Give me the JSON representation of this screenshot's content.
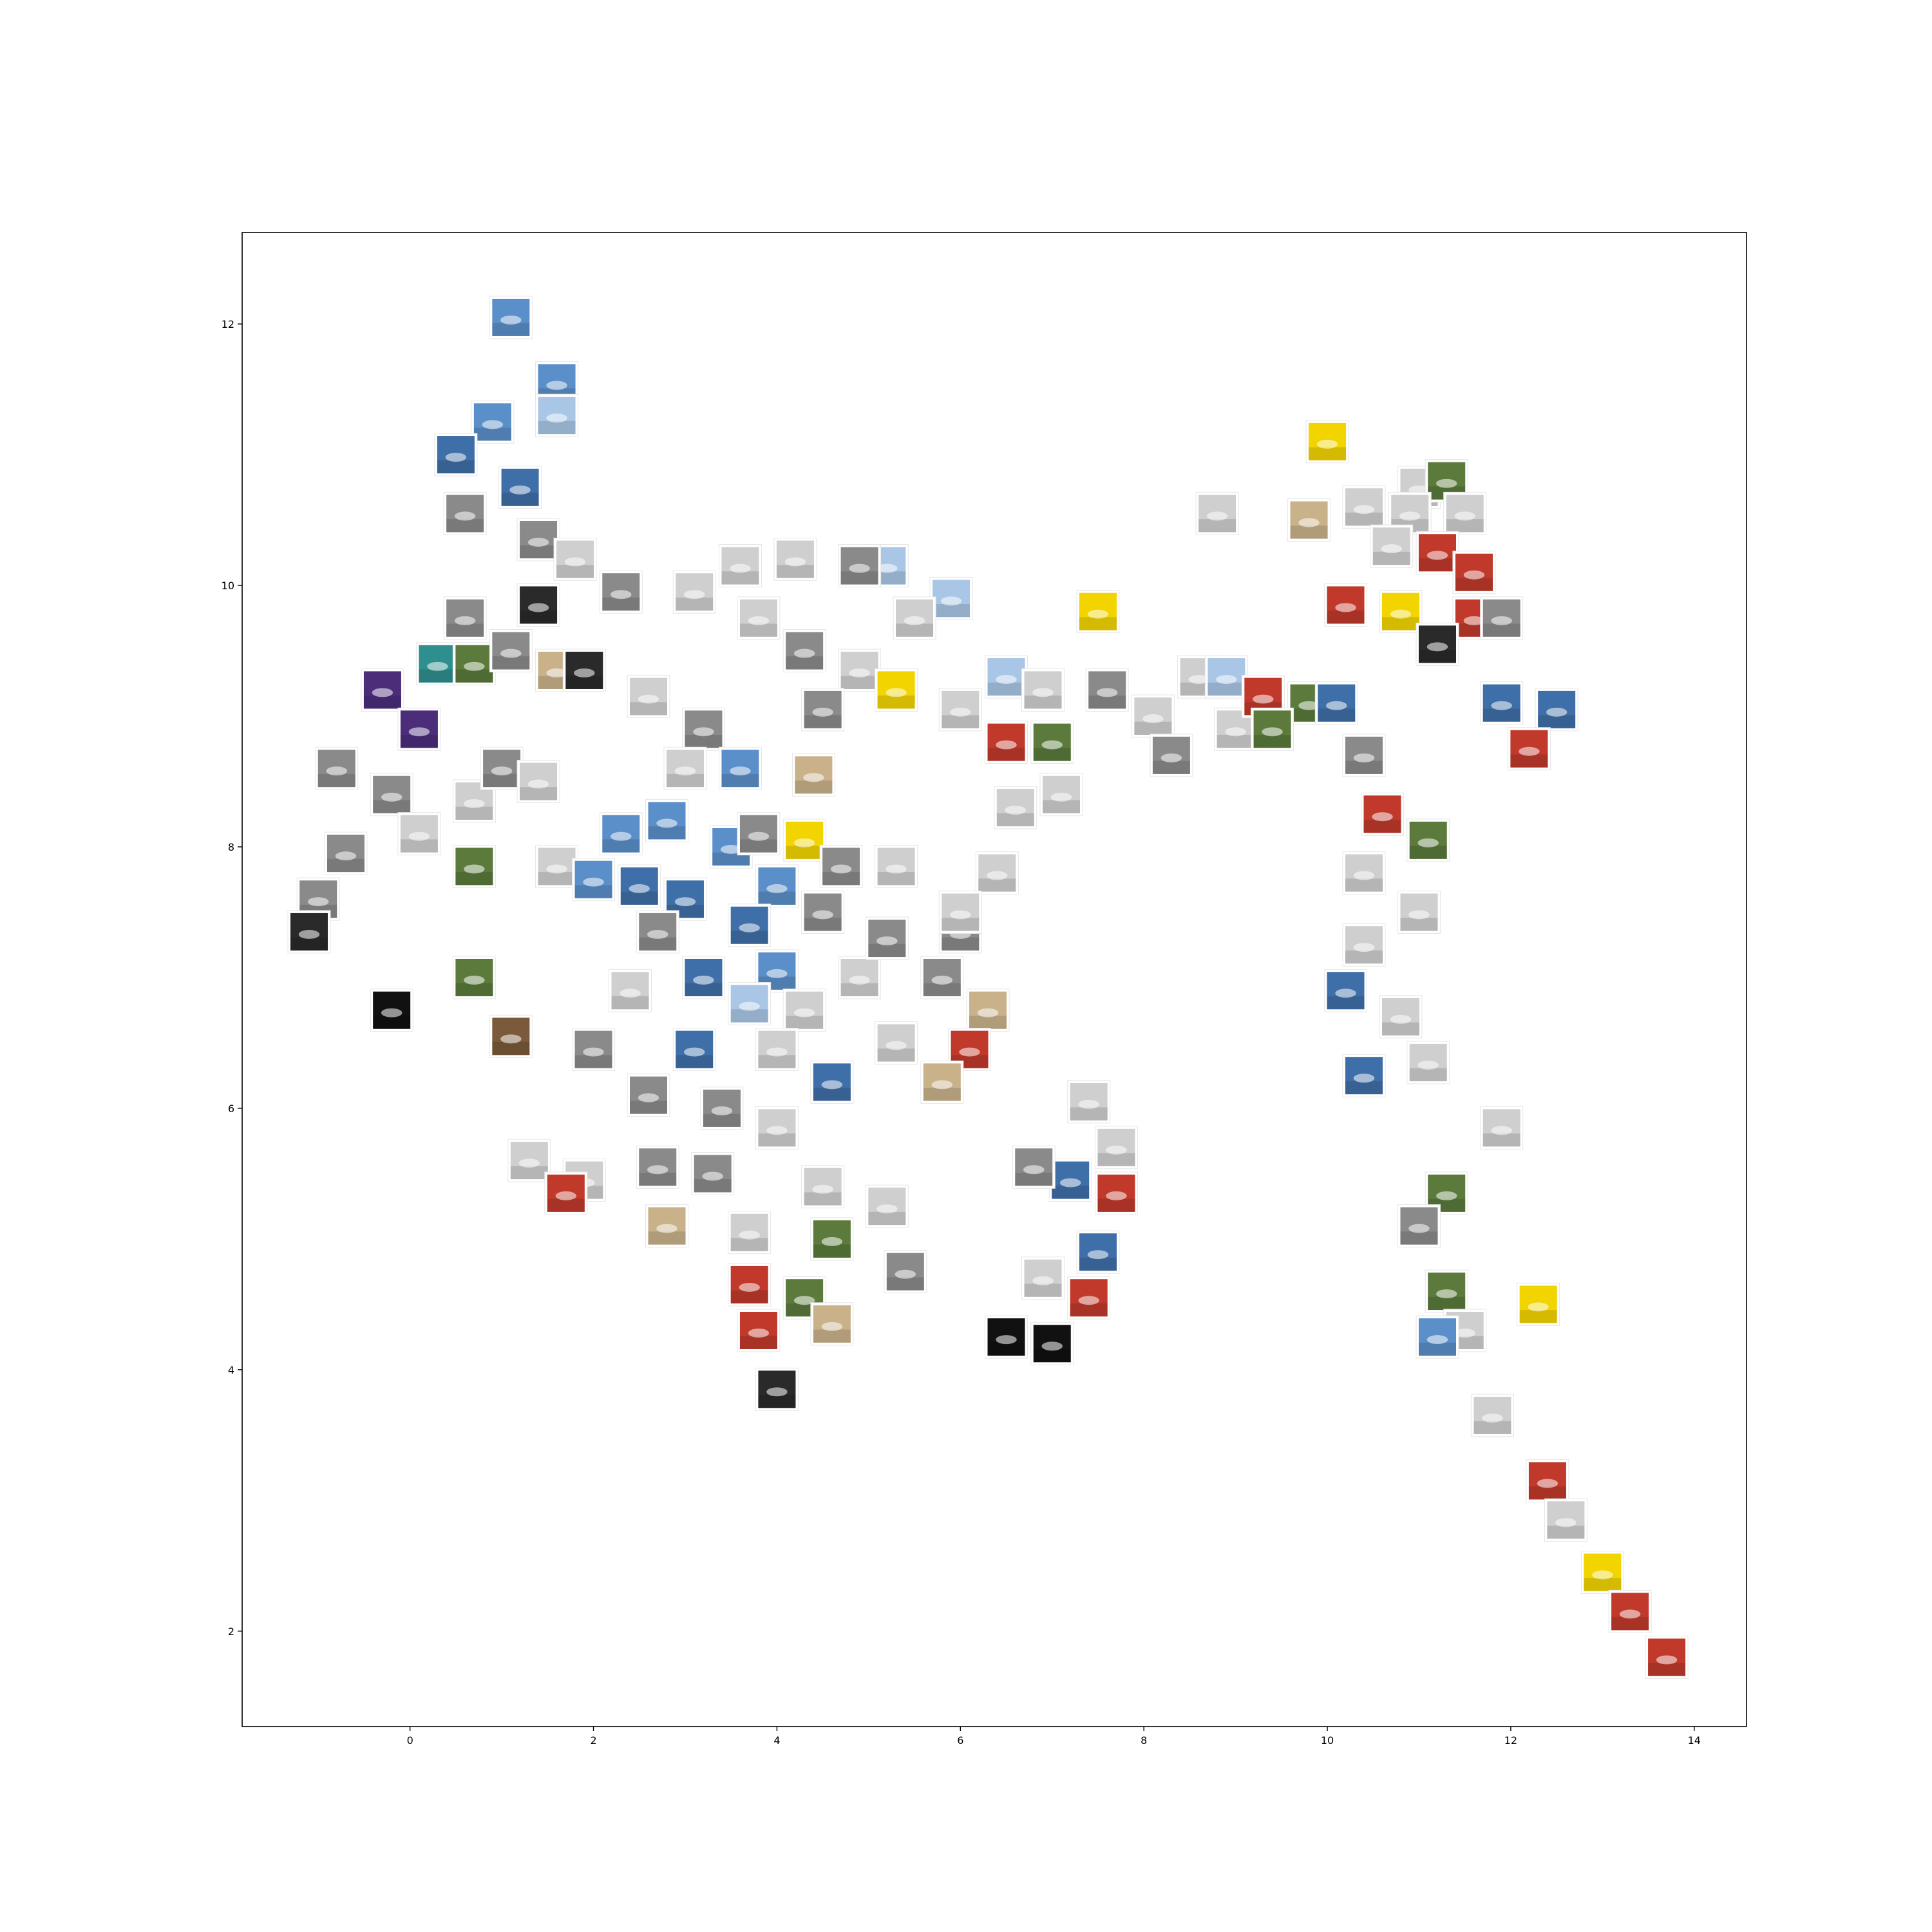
{
  "chart_data": {
    "type": "scatter",
    "title": "",
    "xlabel": "",
    "ylabel": "",
    "xlim": [
      -1.83,
      14.57
    ],
    "ylim": [
      1.27,
      12.7
    ],
    "grid": false,
    "legend": "none",
    "marker": "image-thumbnail",
    "x_ticks": [
      0,
      2,
      4,
      6,
      8,
      10,
      12,
      14
    ],
    "y_ticks": [
      2,
      4,
      6,
      8,
      10,
      12
    ],
    "x_tick_labels": [
      "0",
      "2",
      "4",
      "6",
      "8",
      "10",
      "12",
      "14"
    ],
    "y_tick_labels": [
      "2",
      "4",
      "6",
      "8",
      "10",
      "12"
    ],
    "thumbnail_colors": {
      "sky": "#5b8fc9",
      "sky_light": "#a9c6e6",
      "sky_dark": "#3f6fa8",
      "gray": "#8a8a8a",
      "gray_light": "#cfcfcf",
      "dark": "#2a2a2a",
      "black": "#111111",
      "green": "#5b7a3c",
      "yellow": "#f2d400",
      "red": "#c0392b",
      "purple": "#4b2d7a",
      "teal": "#2f8f8f",
      "brown": "#7a5a3a",
      "tan": "#c9b28a"
    },
    "series": [
      {
        "name": "",
        "points": [
          {
            "x": 1.1,
            "y": 12.05,
            "c": "sky"
          },
          {
            "x": 1.6,
            "y": 11.55,
            "c": "sky"
          },
          {
            "x": 0.9,
            "y": 11.25,
            "c": "sky"
          },
          {
            "x": 1.2,
            "y": 10.75,
            "c": "sky_dark"
          },
          {
            "x": 1.6,
            "y": 11.3,
            "c": "sky_light"
          },
          {
            "x": 0.5,
            "y": 11.0,
            "c": "sky_dark"
          },
          {
            "x": 0.6,
            "y": 10.55,
            "c": "gray"
          },
          {
            "x": 1.4,
            "y": 10.35,
            "c": "gray"
          },
          {
            "x": 1.8,
            "y": 10.2,
            "c": "gray_light"
          },
          {
            "x": 2.3,
            "y": 9.95,
            "c": "gray"
          },
          {
            "x": 1.4,
            "y": 9.85,
            "c": "dark"
          },
          {
            "x": 0.6,
            "y": 9.75,
            "c": "gray"
          },
          {
            "x": -0.3,
            "y": 9.2,
            "c": "purple"
          },
          {
            "x": 0.3,
            "y": 9.4,
            "c": "teal"
          },
          {
            "x": 0.7,
            "y": 9.4,
            "c": "green"
          },
          {
            "x": 0.1,
            "y": 8.9,
            "c": "purple"
          },
          {
            "x": 1.1,
            "y": 9.5,
            "c": "gray"
          },
          {
            "x": 1.6,
            "y": 9.35,
            "c": "tan"
          },
          {
            "x": 1.9,
            "y": 9.35,
            "c": "dark"
          },
          {
            "x": 2.6,
            "y": 9.15,
            "c": "gray_light"
          },
          {
            "x": -0.8,
            "y": 8.6,
            "c": "gray"
          },
          {
            "x": -0.2,
            "y": 8.4,
            "c": "gray"
          },
          {
            "x": 0.7,
            "y": 8.35,
            "c": "gray_light"
          },
          {
            "x": 1.0,
            "y": 8.6,
            "c": "gray"
          },
          {
            "x": 1.4,
            "y": 8.5,
            "c": "gray_light"
          },
          {
            "x": 0.1,
            "y": 8.1,
            "c": "gray_light"
          },
          {
            "x": 0.7,
            "y": 7.85,
            "c": "green"
          },
          {
            "x": -0.7,
            "y": 7.95,
            "c": "gray"
          },
          {
            "x": -1.0,
            "y": 7.6,
            "c": "gray"
          },
          {
            "x": -1.1,
            "y": 7.35,
            "c": "dark"
          },
          {
            "x": 1.6,
            "y": 7.85,
            "c": "gray_light"
          },
          {
            "x": 2.0,
            "y": 7.75,
            "c": "sky"
          },
          {
            "x": 2.3,
            "y": 8.1,
            "c": "sky"
          },
          {
            "x": 2.5,
            "y": 7.7,
            "c": "sky_dark"
          },
          {
            "x": 3.0,
            "y": 7.6,
            "c": "sky_dark"
          },
          {
            "x": 2.8,
            "y": 8.2,
            "c": "sky"
          },
          {
            "x": 0.7,
            "y": 7.0,
            "c": "green"
          },
          {
            "x": -0.2,
            "y": 6.75,
            "c": "black"
          },
          {
            "x": 1.1,
            "y": 6.55,
            "c": "brown"
          },
          {
            "x": 3.2,
            "y": 8.9,
            "c": "gray"
          },
          {
            "x": 3.0,
            "y": 8.6,
            "c": "gray_light"
          },
          {
            "x": 3.6,
            "y": 8.6,
            "c": "sky"
          },
          {
            "x": 4.4,
            "y": 8.55,
            "c": "tan"
          },
          {
            "x": 4.3,
            "y": 8.05,
            "c": "yellow"
          },
          {
            "x": 3.5,
            "y": 8.0,
            "c": "sky"
          },
          {
            "x": 3.8,
            "y": 8.1,
            "c": "gray"
          },
          {
            "x": 4.0,
            "y": 7.7,
            "c": "sky"
          },
          {
            "x": 4.7,
            "y": 7.85,
            "c": "gray"
          },
          {
            "x": 5.3,
            "y": 7.85,
            "c": "gray_light"
          },
          {
            "x": 4.5,
            "y": 7.5,
            "c": "gray"
          },
          {
            "x": 3.7,
            "y": 7.4,
            "c": "sky_dark"
          },
          {
            "x": 2.7,
            "y": 7.35,
            "c": "gray"
          },
          {
            "x": 2.4,
            "y": 6.9,
            "c": "gray_light"
          },
          {
            "x": 3.2,
            "y": 7.0,
            "c": "sky_dark"
          },
          {
            "x": 4.0,
            "y": 7.05,
            "c": "sky"
          },
          {
            "x": 4.9,
            "y": 7.0,
            "c": "gray_light"
          },
          {
            "x": 5.2,
            "y": 7.3,
            "c": "gray"
          },
          {
            "x": 3.7,
            "y": 6.8,
            "c": "sky_light"
          },
          {
            "x": 4.3,
            "y": 6.75,
            "c": "gray_light"
          },
          {
            "x": 5.3,
            "y": 6.5,
            "c": "gray_light"
          },
          {
            "x": 6.0,
            "y": 7.35,
            "c": "gray"
          },
          {
            "x": 5.8,
            "y": 7.0,
            "c": "gray"
          },
          {
            "x": 6.3,
            "y": 6.75,
            "c": "tan"
          },
          {
            "x": 6.1,
            "y": 6.45,
            "c": "red"
          },
          {
            "x": 5.8,
            "y": 6.2,
            "c": "tan"
          },
          {
            "x": 2.0,
            "y": 6.45,
            "c": "gray"
          },
          {
            "x": 2.6,
            "y": 6.1,
            "c": "gray"
          },
          {
            "x": 3.1,
            "y": 6.45,
            "c": "sky_dark"
          },
          {
            "x": 4.0,
            "y": 6.45,
            "c": "gray_light"
          },
          {
            "x": 4.6,
            "y": 6.2,
            "c": "sky_dark"
          },
          {
            "x": 3.4,
            "y": 6.0,
            "c": "gray"
          },
          {
            "x": 4.0,
            "y": 5.85,
            "c": "gray_light"
          },
          {
            "x": 1.3,
            "y": 5.6,
            "c": "gray_light"
          },
          {
            "x": 1.9,
            "y": 5.45,
            "c": "gray_light"
          },
          {
            "x": 2.7,
            "y": 5.55,
            "c": "gray"
          },
          {
            "x": 3.3,
            "y": 5.5,
            "c": "gray"
          },
          {
            "x": 4.5,
            "y": 5.4,
            "c": "gray_light"
          },
          {
            "x": 5.2,
            "y": 5.25,
            "c": "gray_light"
          },
          {
            "x": 2.8,
            "y": 5.1,
            "c": "tan"
          },
          {
            "x": 3.7,
            "y": 5.05,
            "c": "gray_light"
          },
          {
            "x": 4.6,
            "y": 5.0,
            "c": "green"
          },
          {
            "x": 5.4,
            "y": 4.75,
            "c": "gray"
          },
          {
            "x": 3.7,
            "y": 4.65,
            "c": "red"
          },
          {
            "x": 4.3,
            "y": 4.55,
            "c": "green"
          },
          {
            "x": 3.8,
            "y": 4.3,
            "c": "red"
          },
          {
            "x": 4.6,
            "y": 4.35,
            "c": "tan"
          },
          {
            "x": 4.0,
            "y": 3.85,
            "c": "dark"
          },
          {
            "x": 1.7,
            "y": 5.35,
            "c": "red"
          },
          {
            "x": 3.6,
            "y": 10.15,
            "c": "gray_light"
          },
          {
            "x": 4.2,
            "y": 10.2,
            "c": "gray_light"
          },
          {
            "x": 3.1,
            "y": 9.95,
            "c": "gray_light"
          },
          {
            "x": 3.8,
            "y": 9.75,
            "c": "gray_light"
          },
          {
            "x": 4.3,
            "y": 9.5,
            "c": "gray"
          },
          {
            "x": 5.2,
            "y": 10.15,
            "c": "sky_light"
          },
          {
            "x": 5.9,
            "y": 9.9,
            "c": "sky_light"
          },
          {
            "x": 4.9,
            "y": 10.15,
            "c": "gray"
          },
          {
            "x": 5.5,
            "y": 9.75,
            "c": "gray_light"
          },
          {
            "x": 4.9,
            "y": 9.35,
            "c": "gray_light"
          },
          {
            "x": 4.5,
            "y": 9.05,
            "c": "gray"
          },
          {
            "x": 5.3,
            "y": 9.2,
            "c": "yellow"
          },
          {
            "x": 6.0,
            "y": 9.05,
            "c": "gray_light"
          },
          {
            "x": 6.5,
            "y": 9.3,
            "c": "sky_light"
          },
          {
            "x": 6.9,
            "y": 9.2,
            "c": "gray_light"
          },
          {
            "x": 7.6,
            "y": 9.2,
            "c": "gray"
          },
          {
            "x": 7.0,
            "y": 8.8,
            "c": "green"
          },
          {
            "x": 6.5,
            "y": 8.8,
            "c": "red"
          },
          {
            "x": 7.1,
            "y": 8.4,
            "c": "gray_light"
          },
          {
            "x": 6.6,
            "y": 8.3,
            "c": "gray_light"
          },
          {
            "x": 6.4,
            "y": 7.8,
            "c": "gray_light"
          },
          {
            "x": 6.0,
            "y": 7.5,
            "c": "gray_light"
          },
          {
            "x": 8.1,
            "y": 9.0,
            "c": "gray_light"
          },
          {
            "x": 8.6,
            "y": 9.3,
            "c": "gray_light"
          },
          {
            "x": 9.0,
            "y": 8.9,
            "c": "gray_light"
          },
          {
            "x": 8.9,
            "y": 9.3,
            "c": "sky_light"
          },
          {
            "x": 9.3,
            "y": 9.15,
            "c": "red"
          },
          {
            "x": 9.8,
            "y": 9.1,
            "c": "green"
          },
          {
            "x": 10.1,
            "y": 9.1,
            "c": "sky_dark"
          },
          {
            "x": 9.4,
            "y": 8.9,
            "c": "green"
          },
          {
            "x": 8.3,
            "y": 8.7,
            "c": "gray"
          },
          {
            "x": 7.5,
            "y": 9.8,
            "c": "yellow"
          },
          {
            "x": 8.8,
            "y": 10.55,
            "c": "gray_light"
          },
          {
            "x": 10.0,
            "y": 11.1,
            "c": "yellow"
          },
          {
            "x": 9.8,
            "y": 10.5,
            "c": "tan"
          },
          {
            "x": 10.4,
            "y": 10.6,
            "c": "gray_light"
          },
          {
            "x": 11.0,
            "y": 10.75,
            "c": "gray_light"
          },
          {
            "x": 11.3,
            "y": 10.8,
            "c": "green"
          },
          {
            "x": 11.5,
            "y": 10.55,
            "c": "gray_light"
          },
          {
            "x": 10.9,
            "y": 10.55,
            "c": "gray_light"
          },
          {
            "x": 10.7,
            "y": 10.3,
            "c": "gray_light"
          },
          {
            "x": 11.2,
            "y": 10.25,
            "c": "red"
          },
          {
            "x": 11.6,
            "y": 10.1,
            "c": "red"
          },
          {
            "x": 10.2,
            "y": 9.85,
            "c": "red"
          },
          {
            "x": 10.8,
            "y": 9.8,
            "c": "yellow"
          },
          {
            "x": 11.6,
            "y": 9.75,
            "c": "red"
          },
          {
            "x": 11.9,
            "y": 9.75,
            "c": "gray"
          },
          {
            "x": 11.2,
            "y": 9.55,
            "c": "dark"
          },
          {
            "x": 11.9,
            "y": 9.1,
            "c": "sky_dark"
          },
          {
            "x": 12.5,
            "y": 9.05,
            "c": "sky_dark"
          },
          {
            "x": 12.2,
            "y": 8.75,
            "c": "red"
          },
          {
            "x": 10.4,
            "y": 8.7,
            "c": "gray"
          },
          {
            "x": 10.6,
            "y": 8.25,
            "c": "red"
          },
          {
            "x": 11.1,
            "y": 8.05,
            "c": "green"
          },
          {
            "x": 10.4,
            "y": 7.8,
            "c": "gray_light"
          },
          {
            "x": 11.0,
            "y": 7.5,
            "c": "gray_light"
          },
          {
            "x": 10.4,
            "y": 7.25,
            "c": "gray_light"
          },
          {
            "x": 10.2,
            "y": 6.9,
            "c": "sky_dark"
          },
          {
            "x": 10.8,
            "y": 6.7,
            "c": "gray_light"
          },
          {
            "x": 10.4,
            "y": 6.25,
            "c": "sky_dark"
          },
          {
            "x": 11.1,
            "y": 6.35,
            "c": "gray_light"
          },
          {
            "x": 11.9,
            "y": 5.85,
            "c": "gray_light"
          },
          {
            "x": 11.3,
            "y": 5.35,
            "c": "green"
          },
          {
            "x": 11.0,
            "y": 5.1,
            "c": "gray"
          },
          {
            "x": 11.3,
            "y": 4.6,
            "c": "green"
          },
          {
            "x": 11.5,
            "y": 4.3,
            "c": "gray_light"
          },
          {
            "x": 11.2,
            "y": 4.25,
            "c": "sky"
          },
          {
            "x": 12.3,
            "y": 4.5,
            "c": "yellow"
          },
          {
            "x": 11.8,
            "y": 3.65,
            "c": "gray_light"
          },
          {
            "x": 12.4,
            "y": 3.15,
            "c": "red"
          },
          {
            "x": 12.6,
            "y": 2.85,
            "c": "gray_light"
          },
          {
            "x": 13.0,
            "y": 2.45,
            "c": "yellow"
          },
          {
            "x": 13.3,
            "y": 2.15,
            "c": "red"
          },
          {
            "x": 13.7,
            "y": 1.8,
            "c": "red"
          },
          {
            "x": 7.4,
            "y": 6.05,
            "c": "gray_light"
          },
          {
            "x": 7.7,
            "y": 5.7,
            "c": "gray_light"
          },
          {
            "x": 7.2,
            "y": 5.45,
            "c": "sky_dark"
          },
          {
            "x": 7.7,
            "y": 5.35,
            "c": "red"
          },
          {
            "x": 6.8,
            "y": 5.55,
            "c": "gray"
          },
          {
            "x": 7.5,
            "y": 4.9,
            "c": "sky_dark"
          },
          {
            "x": 6.9,
            "y": 4.7,
            "c": "gray_light"
          },
          {
            "x": 7.4,
            "y": 4.55,
            "c": "red"
          },
          {
            "x": 6.5,
            "y": 4.25,
            "c": "black"
          },
          {
            "x": 7.0,
            "y": 4.2,
            "c": "black"
          }
        ]
      }
    ]
  }
}
